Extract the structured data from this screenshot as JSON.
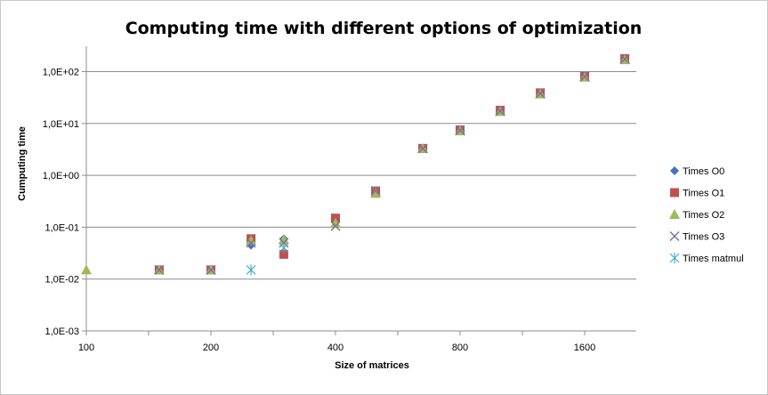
{
  "chart_data": {
    "type": "scatter",
    "title": "Computing time with different options of optimization",
    "xlabel": "Size of matrices",
    "ylabel": "Cumputing time",
    "x_scale": "log2",
    "y_scale": "log10",
    "xlim": [
      100,
      3000
    ],
    "ylim": [
      0.001,
      200
    ],
    "x_ticks": [
      {
        "value": 100,
        "label": "100"
      },
      {
        "value": 200,
        "label": "200"
      },
      {
        "value": 400,
        "label": "400"
      },
      {
        "value": 800,
        "label": "800"
      },
      {
        "value": 1600,
        "label": "1600"
      }
    ],
    "y_ticks": [
      {
        "value": 0.001,
        "label": "1,0E-03"
      },
      {
        "value": 0.01,
        "label": "1,0E-02"
      },
      {
        "value": 0.1,
        "label": "1,0E-01"
      },
      {
        "value": 1,
        "label": "1,0E+00"
      },
      {
        "value": 10,
        "label": "1,0E+01"
      },
      {
        "value": 100,
        "label": "1,0E+02"
      }
    ],
    "grid": {
      "y_major": true,
      "x_major": false
    },
    "legend_position": "right",
    "series": [
      {
        "name": "Times O0",
        "marker": "diamond",
        "color": "#4472C4",
        "points": [
          [
            150,
            0.015
          ],
          [
            200,
            0.015
          ],
          [
            250,
            0.045
          ],
          [
            300,
            0.06
          ],
          [
            400,
            0.14
          ],
          [
            500,
            0.5
          ],
          [
            650,
            3.3
          ],
          [
            800,
            7.4
          ],
          [
            1000,
            18
          ],
          [
            1250,
            38
          ],
          [
            1600,
            80
          ],
          [
            2000,
            175
          ]
        ]
      },
      {
        "name": "Times O1",
        "marker": "square",
        "color": "#C0504D",
        "points": [
          [
            150,
            0.015
          ],
          [
            200,
            0.015
          ],
          [
            250,
            0.06
          ],
          [
            300,
            0.03
          ],
          [
            400,
            0.15
          ],
          [
            500,
            0.5
          ],
          [
            650,
            3.3
          ],
          [
            800,
            7.5
          ],
          [
            1000,
            18
          ],
          [
            1250,
            39
          ],
          [
            1600,
            81
          ],
          [
            2000,
            178
          ]
        ]
      },
      {
        "name": "Times O2",
        "marker": "triangle",
        "color": "#9BBB59",
        "points": [
          [
            100,
            0.015
          ],
          [
            150,
            0.015
          ],
          [
            200,
            0.015
          ],
          [
            250,
            0.055
          ],
          [
            300,
            0.058
          ],
          [
            400,
            0.12
          ],
          [
            500,
            0.45
          ],
          [
            650,
            3.3
          ],
          [
            800,
            7.2
          ],
          [
            1000,
            17
          ],
          [
            1250,
            37
          ],
          [
            1600,
            78
          ],
          [
            2000,
            170
          ]
        ]
      },
      {
        "name": "Times O3",
        "marker": "x",
        "color": "#7F6A9F",
        "points": [
          [
            150,
            0.015
          ],
          [
            200,
            0.015
          ],
          [
            250,
            0.05
          ],
          [
            300,
            0.05
          ],
          [
            400,
            0.105
          ],
          [
            500,
            0.5
          ],
          [
            650,
            3.3
          ],
          [
            800,
            7.4
          ],
          [
            1000,
            17.5
          ],
          [
            1250,
            38
          ],
          [
            1600,
            80
          ],
          [
            2000,
            175
          ]
        ]
      },
      {
        "name": "Times matmul",
        "marker": "asterisk",
        "color": "#4BACC6",
        "points": [
          [
            250,
            0.015
          ],
          [
            300,
            0.04
          ]
        ]
      }
    ]
  }
}
